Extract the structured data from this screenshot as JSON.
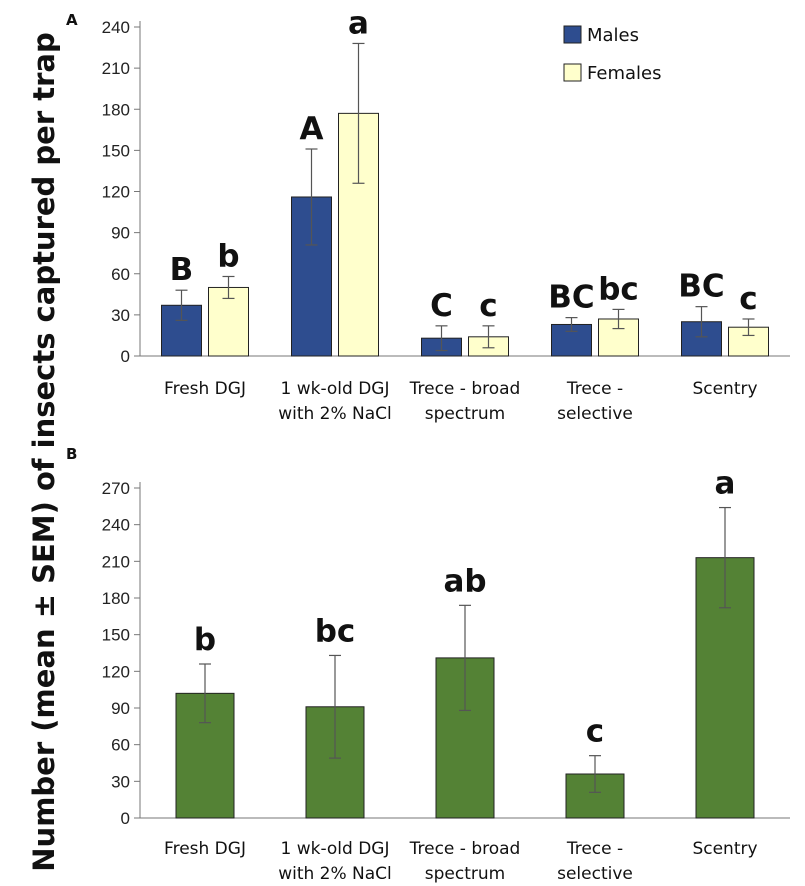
{
  "ylabel": "Number (mean ± SEM) of insects  captured per trap",
  "chart_data": [
    {
      "panel_label": "A",
      "type": "bar",
      "categories": [
        [
          "Fresh DGJ"
        ],
        [
          "1 wk-old DGJ",
          "with 2% NaCl"
        ],
        [
          "Trece - broad",
          "spectrum"
        ],
        [
          "Trece -",
          "selective"
        ],
        [
          "Scentry"
        ]
      ],
      "ylim": [
        0,
        240
      ],
      "yticks": [
        0,
        30,
        60,
        90,
        120,
        150,
        180,
        210,
        240
      ],
      "legend_position": "top-right",
      "series": [
        {
          "name": "Males",
          "color": "#2E4D8F",
          "values": [
            37,
            116,
            13,
            23,
            25
          ],
          "errors": [
            11,
            35,
            9,
            5,
            11
          ],
          "letters": [
            "B",
            "A",
            "C",
            "BC",
            "BC"
          ]
        },
        {
          "name": "Females",
          "color": "#FFFFCC",
          "values": [
            50,
            177,
            14,
            27,
            21
          ],
          "errors": [
            8,
            51,
            8,
            7,
            6
          ],
          "letters": [
            "b",
            "a",
            "c",
            "bc",
            "c"
          ]
        }
      ]
    },
    {
      "panel_label": "B",
      "type": "bar",
      "categories": [
        [
          "Fresh DGJ"
        ],
        [
          "1 wk-old DGJ",
          "with 2% NaCl"
        ],
        [
          "Trece - broad",
          "spectrum"
        ],
        [
          "Trece -",
          "selective"
        ],
        [
          "Scentry"
        ]
      ],
      "ylim": [
        0,
        270
      ],
      "yticks": [
        0,
        30,
        60,
        90,
        120,
        150,
        180,
        210,
        240,
        270
      ],
      "series": [
        {
          "color": "#548235",
          "values": [
            102,
            91,
            131,
            36,
            213
          ],
          "errors": [
            24,
            42,
            43,
            15,
            41
          ],
          "letters": [
            "b",
            "bc",
            "ab",
            "c",
            "a"
          ]
        }
      ]
    }
  ]
}
